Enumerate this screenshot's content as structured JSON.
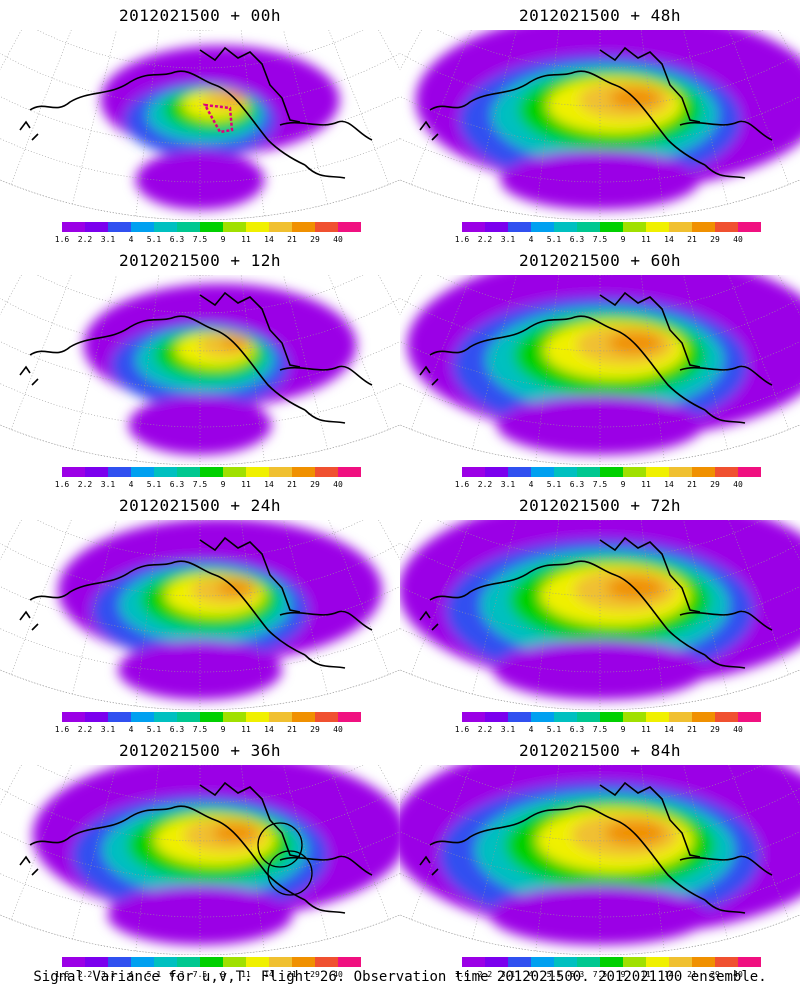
{
  "panels": [
    {
      "title": "2012021500 + 00h",
      "lead": 0,
      "intensity": 0.35,
      "inner_box": true,
      "circle": false
    },
    {
      "title": "2012021500 + 48h",
      "lead": 48,
      "intensity": 0.85,
      "inner_box": false,
      "circle": false
    },
    {
      "title": "2012021500 + 12h",
      "lead": 12,
      "intensity": 0.45,
      "inner_box": false,
      "circle": false
    },
    {
      "title": "2012021500 + 60h",
      "lead": 60,
      "intensity": 0.9,
      "inner_box": false,
      "circle": false
    },
    {
      "title": "2012021500 + 24h",
      "lead": 24,
      "intensity": 0.6,
      "inner_box": false,
      "circle": false
    },
    {
      "title": "2012021500 + 72h",
      "lead": 72,
      "intensity": 0.95,
      "inner_box": false,
      "circle": false
    },
    {
      "title": "2012021500 + 36h",
      "lead": 36,
      "intensity": 0.75,
      "inner_box": false,
      "circle": true
    },
    {
      "title": "2012021500 + 84h",
      "lead": 84,
      "intensity": 1.0,
      "inner_box": false,
      "circle": false
    }
  ],
  "colorbar": {
    "labels": [
      "1.6",
      "2.2",
      "3.1",
      "4",
      "5.1",
      "6.3",
      "7.5",
      "9",
      "11",
      "14",
      "21",
      "29",
      "40"
    ],
    "colors": [
      "#9b00e6",
      "#7b00ee",
      "#3050f0",
      "#00a0f0",
      "#00c0c0",
      "#00c890",
      "#00d000",
      "#a0e000",
      "#f0f000",
      "#f0c030",
      "#f09000",
      "#f05030",
      "#f01080"
    ]
  },
  "footer": "Signal Variance for u,v,T. Flight 26. Observation time 2012021500. 2012021100 ensemble."
}
